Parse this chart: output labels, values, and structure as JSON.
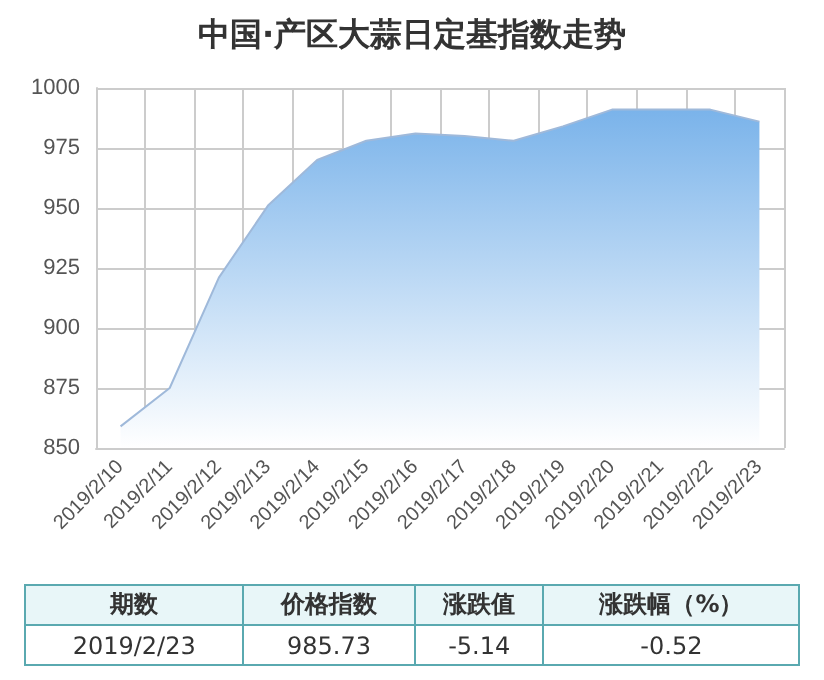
{
  "chart_data": {
    "type": "area",
    "title": "中国·产区大蒜日定基指数走势",
    "categories": [
      "2019/2/10",
      "2019/2/11",
      "2019/2/12",
      "2019/2/13",
      "2019/2/14",
      "2019/2/15",
      "2019/2/16",
      "2019/2/17",
      "2019/2/18",
      "2019/2/19",
      "2019/2/20",
      "2019/2/21",
      "2019/2/22",
      "2019/2/23"
    ],
    "series": [
      {
        "color": "#7ab3ea",
        "values": [
          859,
          875,
          921,
          951,
          970,
          978,
          981,
          980,
          978,
          984,
          991,
          991,
          991,
          986
        ]
      }
    ],
    "ylim": [
      850,
      1000
    ],
    "yticks": [
      850,
      875,
      900,
      925,
      950,
      975,
      1000
    ],
    "grid": true,
    "marker": "none",
    "line_style": "solid",
    "annotations": [
      "期数",
      "价格指数",
      "涨跌值",
      "涨跌幅（%）",
      "2019/2/23",
      "985.73",
      "-5.14",
      "-0.52"
    ]
  }
}
